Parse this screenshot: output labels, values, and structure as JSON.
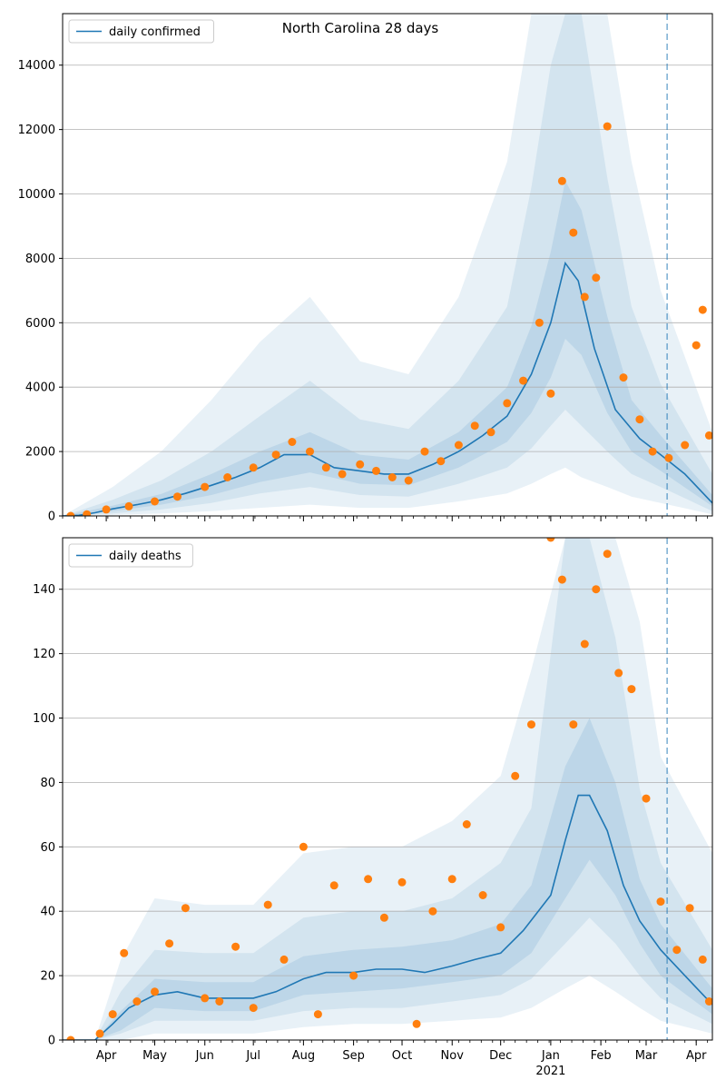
{
  "figure_title": "North Carolina 28 days",
  "colors": {
    "line": "#1f77b4",
    "points": "#ff7f0e",
    "band": "#1f77b4",
    "grid": "#b0b0b0",
    "axis": "#000000"
  },
  "chart_data": [
    {
      "type": "line",
      "title": "North Carolina 28 days",
      "xlabel": "",
      "ylabel": "",
      "x_ticks": [
        "Apr",
        "May",
        "Jun",
        "Jul",
        "Aug",
        "Sep",
        "Oct",
        "Nov",
        "Dec",
        "Jan",
        "Feb",
        "Mar",
        "Apr"
      ],
      "x_tick_dates": [
        "2020-04-01",
        "2020-05-01",
        "2020-06-01",
        "2020-07-01",
        "2020-08-01",
        "2020-09-01",
        "2020-10-01",
        "2020-11-01",
        "2020-12-01",
        "2021-01-01",
        "2021-02-01",
        "2021-03-01",
        "2021-04-01"
      ],
      "year_label": "2021",
      "xlim": [
        "2020-03-05",
        "2021-04-11"
      ],
      "ylim": [
        0,
        15600
      ],
      "y_ticks": [
        0,
        2000,
        4000,
        6000,
        8000,
        10000,
        12000,
        14000
      ],
      "grid": "horizontal",
      "legend_position": "top-left",
      "vertical_marker_date": "2021-03-14",
      "series": [
        {
          "name": "daily confirmed",
          "type": "line",
          "x": [
            "2020-03-05",
            "2020-03-15",
            "2020-03-25",
            "2020-04-05",
            "2020-04-20",
            "2020-05-05",
            "2020-05-20",
            "2020-06-05",
            "2020-06-20",
            "2020-07-05",
            "2020-07-20",
            "2020-08-05",
            "2020-08-20",
            "2020-09-05",
            "2020-09-20",
            "2020-10-05",
            "2020-10-20",
            "2020-11-05",
            "2020-11-20",
            "2020-12-05",
            "2020-12-20",
            "2021-01-01",
            "2021-01-10",
            "2021-01-18",
            "2021-01-28",
            "2021-02-10",
            "2021-02-25",
            "2021-03-10",
            "2021-03-25",
            "2021-04-11"
          ],
          "y": [
            0,
            20,
            100,
            220,
            350,
            500,
            700,
            950,
            1200,
            1500,
            1900,
            1900,
            1500,
            1400,
            1300,
            1300,
            1600,
            2000,
            2500,
            3100,
            4400,
            6000,
            7850,
            7300,
            5200,
            3300,
            2400,
            1900,
            1300,
            400
          ]
        },
        {
          "name": "",
          "type": "band",
          "x": [
            "2020-03-05",
            "2020-04-05",
            "2020-05-05",
            "2020-06-05",
            "2020-07-05",
            "2020-08-05",
            "2020-09-05",
            "2020-10-05",
            "2020-11-05",
            "2020-12-05",
            "2020-12-20",
            "2021-01-01",
            "2021-01-10",
            "2021-01-20",
            "2021-02-05",
            "2021-02-20",
            "2021-03-10",
            "2021-04-11"
          ],
          "inner_low": [
            0,
            150,
            350,
            650,
            1050,
            1350,
            1000,
            950,
            1500,
            2300,
            3200,
            4300,
            5500,
            5000,
            3200,
            2000,
            1400,
            300
          ],
          "inner_high": [
            0,
            320,
            680,
            1300,
            2000,
            2600,
            1900,
            1750,
            2600,
            4000,
            5900,
            8200,
            10400,
            9500,
            6200,
            3600,
            2500,
            650
          ],
          "outer_low": [
            0,
            80,
            200,
            400,
            700,
            900,
            650,
            600,
            1000,
            1500,
            2100,
            2800,
            3300,
            2800,
            2000,
            1300,
            900,
            150
          ],
          "outer_high": [
            0,
            500,
            1100,
            2000,
            3100,
            4200,
            3000,
            2700,
            4200,
            6500,
            10200,
            14000,
            15600,
            15600,
            10500,
            6500,
            4100,
            1300
          ],
          "wide_low": [
            0,
            30,
            80,
            150,
            250,
            350,
            250,
            250,
            450,
            700,
            1000,
            1300,
            1500,
            1200,
            900,
            600,
            400,
            50
          ],
          "wide_high": [
            0,
            900,
            2000,
            3600,
            5400,
            6800,
            4800,
            4400,
            6800,
            11000,
            15600,
            15600,
            15600,
            15600,
            15600,
            11000,
            7000,
            2600
          ]
        },
        {
          "name": "",
          "type": "scatter",
          "x": [
            "2020-03-10",
            "2020-03-20",
            "2020-04-01",
            "2020-04-15",
            "2020-05-01",
            "2020-05-15",
            "2020-06-01",
            "2020-06-15",
            "2020-07-01",
            "2020-07-15",
            "2020-07-25",
            "2020-08-05",
            "2020-08-15",
            "2020-08-25",
            "2020-09-05",
            "2020-09-15",
            "2020-09-25",
            "2020-10-05",
            "2020-10-15",
            "2020-10-25",
            "2020-11-05",
            "2020-11-15",
            "2020-11-25",
            "2020-12-05",
            "2020-12-15",
            "2020-12-25",
            "2021-01-01",
            "2021-01-08",
            "2021-01-15",
            "2021-01-22",
            "2021-01-29",
            "2021-02-05",
            "2021-02-15",
            "2021-02-25",
            "2021-03-05",
            "2021-03-15",
            "2021-03-25",
            "2021-04-01",
            "2021-04-05",
            "2021-04-09"
          ],
          "y": [
            0,
            50,
            200,
            300,
            450,
            600,
            900,
            1200,
            1500,
            1900,
            2300,
            2000,
            1500,
            1300,
            1600,
            1400,
            1200,
            1100,
            2000,
            1700,
            2200,
            2800,
            2600,
            3500,
            4200,
            6000,
            3800,
            10400,
            8800,
            6800,
            7400,
            12100,
            4300,
            3000,
            2000,
            1800,
            2200,
            5300,
            6400,
            2500
          ]
        }
      ]
    },
    {
      "type": "line",
      "title": "",
      "xlabel": "",
      "ylabel": "",
      "x_ticks": [
        "Apr",
        "May",
        "Jun",
        "Jul",
        "Aug",
        "Sep",
        "Oct",
        "Nov",
        "Dec",
        "Jan",
        "Feb",
        "Mar",
        "Apr"
      ],
      "x_tick_dates": [
        "2020-04-01",
        "2020-05-01",
        "2020-06-01",
        "2020-07-01",
        "2020-08-01",
        "2020-09-01",
        "2020-10-01",
        "2020-11-01",
        "2020-12-01",
        "2021-01-01",
        "2021-02-01",
        "2021-03-01",
        "2021-04-01"
      ],
      "year_label": "2021",
      "xlim": [
        "2020-03-05",
        "2021-04-11"
      ],
      "ylim": [
        0,
        156
      ],
      "y_ticks": [
        0,
        20,
        40,
        60,
        80,
        100,
        120,
        140
      ],
      "grid": "horizontal",
      "legend_position": "top-left",
      "vertical_marker_date": "2021-03-14",
      "series": [
        {
          "name": "daily deaths",
          "type": "line",
          "x": [
            "2020-03-05",
            "2020-03-25",
            "2020-04-05",
            "2020-04-15",
            "2020-05-01",
            "2020-05-15",
            "2020-06-01",
            "2020-06-15",
            "2020-07-01",
            "2020-07-15",
            "2020-08-01",
            "2020-08-15",
            "2020-09-01",
            "2020-09-15",
            "2020-10-01",
            "2020-10-15",
            "2020-11-01",
            "2020-11-15",
            "2020-12-01",
            "2020-12-15",
            "2021-01-01",
            "2021-01-10",
            "2021-01-18",
            "2021-01-25",
            "2021-02-05",
            "2021-02-15",
            "2021-02-25",
            "2021-03-10",
            "2021-03-25",
            "2021-04-11"
          ],
          "y": [
            0,
            0,
            5,
            10,
            14,
            15,
            13,
            13,
            13,
            15,
            19,
            21,
            21,
            22,
            22,
            21,
            23,
            25,
            27,
            34,
            45,
            62,
            76,
            76,
            65,
            48,
            37,
            28,
            20,
            11
          ]
        },
        {
          "name": "",
          "type": "band",
          "x": [
            "2020-03-05",
            "2020-03-25",
            "2020-04-10",
            "2020-05-01",
            "2020-06-01",
            "2020-07-01",
            "2020-08-01",
            "2020-09-01",
            "2020-10-01",
            "2020-11-01",
            "2020-12-01",
            "2020-12-20",
            "2021-01-10",
            "2021-01-25",
            "2021-02-10",
            "2021-02-25",
            "2021-03-10",
            "2021-04-11"
          ],
          "inner_low": [
            0,
            0,
            3,
            10,
            9,
            9,
            14,
            15,
            16,
            18,
            20,
            27,
            44,
            56,
            45,
            30,
            20,
            8
          ],
          "inner_high": [
            0,
            0,
            9,
            19,
            18,
            18,
            26,
            28,
            29,
            31,
            36,
            48,
            85,
            100,
            80,
            50,
            36,
            16
          ],
          "outer_low": [
            0,
            0,
            2,
            6,
            6,
            6,
            9,
            10,
            10,
            12,
            14,
            19,
            30,
            38,
            30,
            20,
            13,
            5
          ],
          "outer_high": [
            0,
            0,
            15,
            28,
            27,
            27,
            38,
            40,
            40,
            44,
            55,
            72,
            156,
            156,
            125,
            78,
            55,
            28
          ],
          "wide_low": [
            0,
            0,
            0,
            2,
            2,
            2,
            4,
            5,
            5,
            6,
            7,
            10,
            16,
            20,
            15,
            10,
            6,
            2
          ],
          "wide_high": [
            0,
            0,
            25,
            44,
            42,
            42,
            58,
            60,
            60,
            68,
            82,
            115,
            156,
            156,
            156,
            130,
            88,
            58
          ]
        },
        {
          "name": "",
          "type": "scatter",
          "x": [
            "2020-03-10",
            "2020-03-28",
            "2020-04-05",
            "2020-04-12",
            "2020-04-20",
            "2020-05-01",
            "2020-05-10",
            "2020-05-20",
            "2020-06-01",
            "2020-06-10",
            "2020-06-20",
            "2020-07-01",
            "2020-07-10",
            "2020-07-20",
            "2020-08-01",
            "2020-08-10",
            "2020-08-20",
            "2020-09-01",
            "2020-09-10",
            "2020-09-20",
            "2020-10-01",
            "2020-10-10",
            "2020-10-20",
            "2020-11-01",
            "2020-11-10",
            "2020-11-20",
            "2020-12-01",
            "2020-12-10",
            "2020-12-20",
            "2021-01-01",
            "2021-01-08",
            "2021-01-15",
            "2021-01-22",
            "2021-01-29",
            "2021-02-05",
            "2021-02-12",
            "2021-02-20",
            "2021-03-01",
            "2021-03-10",
            "2021-03-20",
            "2021-03-28",
            "2021-04-05",
            "2021-04-09"
          ],
          "y": [
            0,
            2,
            8,
            27,
            12,
            15,
            30,
            41,
            13,
            12,
            29,
            10,
            42,
            25,
            60,
            8,
            48,
            20,
            50,
            38,
            49,
            5,
            40,
            50,
            67,
            45,
            35,
            82,
            98,
            156,
            143,
            98,
            123,
            140,
            151,
            114,
            109,
            75,
            43,
            28,
            41,
            25,
            12
          ]
        }
      ]
    }
  ]
}
